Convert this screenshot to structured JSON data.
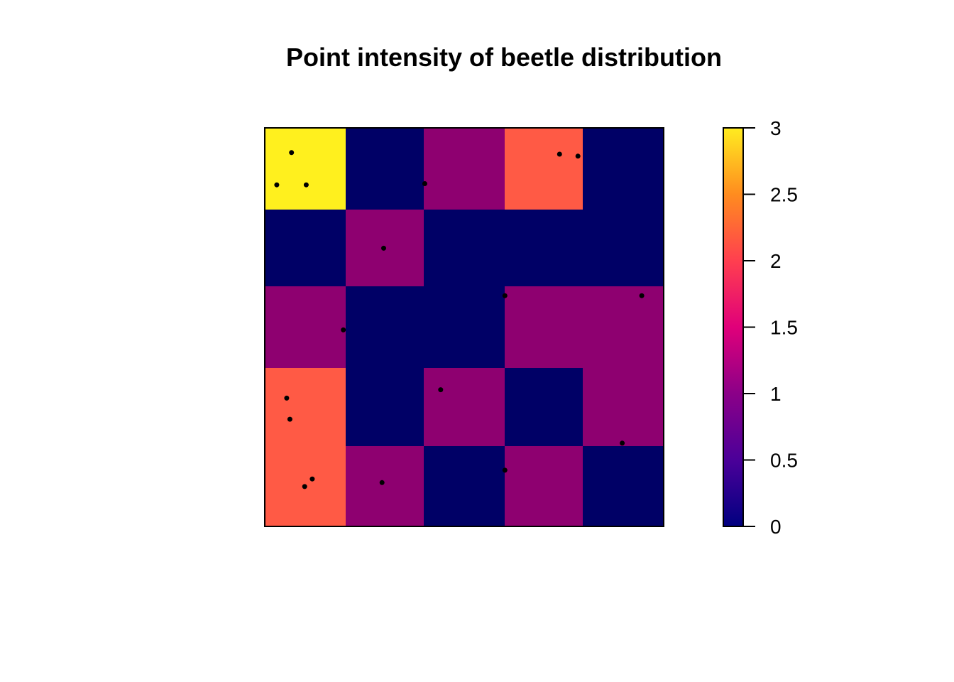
{
  "chart_data": {
    "type": "heatmap",
    "title": "Point intensity of beetle distribution",
    "xlabel": "",
    "ylabel": "",
    "grid": false,
    "legend_placement": "right",
    "colorbar": {
      "range": [
        0,
        3
      ],
      "ticks": [
        0,
        0.5,
        1,
        1.5,
        2,
        2.5,
        3
      ],
      "tick_labels": [
        "0",
        "0.5",
        "1",
        "1.5",
        "2",
        "2.5",
        "3"
      ],
      "gradient_stops": [
        "#000080",
        "#4B0099",
        "#8B0088",
        "#E0007A",
        "#FF3F4F",
        "#FF8C1F",
        "#FFEC20"
      ]
    },
    "cell_colors": {
      "0": "#000066",
      "1": "#8E0070",
      "2": "#FF5A45",
      "3": "#FFF01E"
    },
    "marker_color": "#000000",
    "grid_rows_top_to_bottom": [
      [
        3,
        0,
        1,
        2,
        0
      ],
      [
        0,
        1,
        0,
        0,
        0
      ],
      [
        1,
        0,
        0,
        1,
        1
      ],
      [
        2,
        0,
        1,
        0,
        1
      ],
      [
        2,
        1,
        0,
        1,
        0
      ]
    ],
    "points": [
      {
        "x": 0.067,
        "y": 0.938
      },
      {
        "x": 0.03,
        "y": 0.857
      },
      {
        "x": 0.104,
        "y": 0.857
      },
      {
        "x": 0.401,
        "y": 0.86
      },
      {
        "x": 0.739,
        "y": 0.934
      },
      {
        "x": 0.785,
        "y": 0.929
      },
      {
        "x": 0.298,
        "y": 0.698
      },
      {
        "x": 0.602,
        "y": 0.579
      },
      {
        "x": 0.945,
        "y": 0.579
      },
      {
        "x": 0.197,
        "y": 0.493
      },
      {
        "x": 0.441,
        "y": 0.343
      },
      {
        "x": 0.055,
        "y": 0.322
      },
      {
        "x": 0.063,
        "y": 0.269
      },
      {
        "x": 0.896,
        "y": 0.209
      },
      {
        "x": 0.602,
        "y": 0.141
      },
      {
        "x": 0.119,
        "y": 0.119
      },
      {
        "x": 0.1,
        "y": 0.1
      },
      {
        "x": 0.294,
        "y": 0.11
      }
    ]
  }
}
